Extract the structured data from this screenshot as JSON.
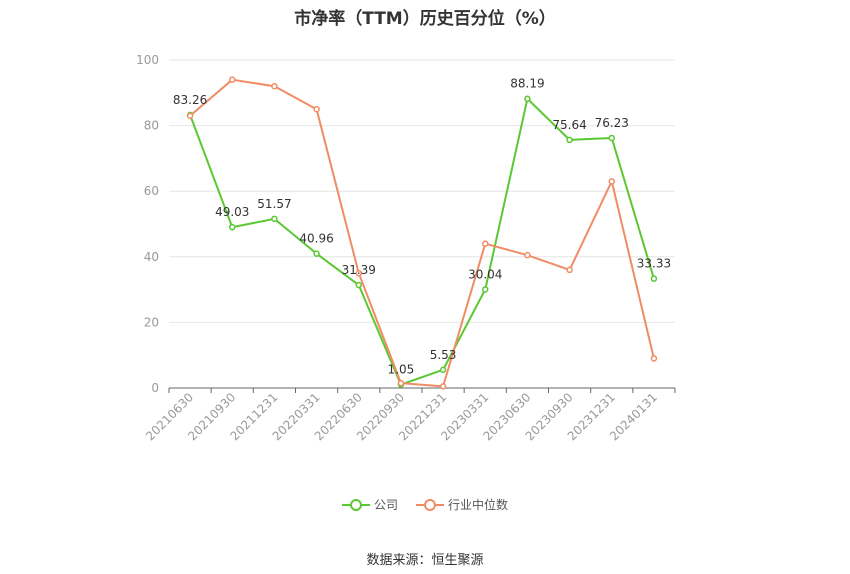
{
  "chart_data": {
    "type": "line",
    "title": "市净率（TTM）历史百分位（%）",
    "categories": [
      "20210630",
      "20210930",
      "20211231",
      "20220331",
      "20220630",
      "20220930",
      "20221231",
      "20230331",
      "20230630",
      "20230930",
      "20231231",
      "20240131"
    ],
    "series": [
      {
        "name": "公司",
        "color": "#5ac832",
        "values": [
          83.26,
          49.03,
          51.57,
          40.96,
          31.39,
          1.05,
          5.53,
          30.04,
          88.19,
          75.64,
          76.23,
          33.33
        ],
        "labels_shown": true
      },
      {
        "name": "行业中位数",
        "color": "#f08c64",
        "values": [
          83.0,
          94.0,
          92.0,
          85.0,
          35.0,
          1.5,
          0.5,
          44.0,
          40.5,
          36.0,
          63.0,
          9.0
        ],
        "labels_shown": false
      }
    ],
    "ylim": [
      0,
      100
    ],
    "yticks": [
      0,
      20,
      40,
      60,
      80,
      100
    ],
    "grid": true,
    "legend_position": "bottom",
    "source": "数据来源：恒生聚源"
  }
}
